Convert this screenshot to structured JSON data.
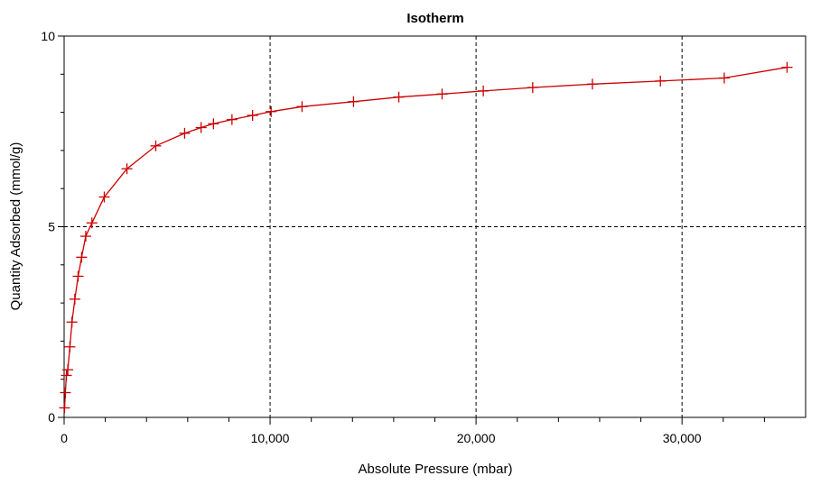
{
  "chart_data": {
    "type": "line",
    "title": "Isotherm",
    "xlabel": "Absolute Pressure (mbar)",
    "ylabel": "Quantity Adsorbed (mmol/g)",
    "xlim": [
      0,
      36000
    ],
    "ylim": [
      0,
      10
    ],
    "x_ticks": [
      0,
      10000,
      20000,
      30000
    ],
    "x_tick_labels": [
      "0",
      "10,000",
      "20,000",
      "30,000"
    ],
    "y_ticks": [
      0,
      5,
      10
    ],
    "y_tick_labels": [
      "0",
      "5",
      "10"
    ],
    "grid": true,
    "legend": false,
    "series": [
      {
        "color": "#cc0000",
        "marker": "plus",
        "x": [
          20,
          60,
          110,
          180,
          280,
          380,
          520,
          680,
          850,
          1050,
          1350,
          1950,
          3050,
          4450,
          5850,
          6650,
          7250,
          8150,
          9150,
          10050,
          11550,
          14050,
          16250,
          18350,
          20350,
          22750,
          25650,
          28950,
          32050,
          35100
        ],
        "y": [
          0.25,
          0.65,
          1.1,
          1.25,
          1.85,
          2.5,
          3.1,
          3.7,
          4.2,
          4.75,
          5.1,
          5.78,
          6.52,
          7.12,
          7.45,
          7.6,
          7.7,
          7.81,
          7.92,
          8.02,
          8.15,
          8.28,
          8.4,
          8.48,
          8.56,
          8.65,
          8.74,
          8.82,
          8.9,
          9.18
        ]
      }
    ]
  }
}
